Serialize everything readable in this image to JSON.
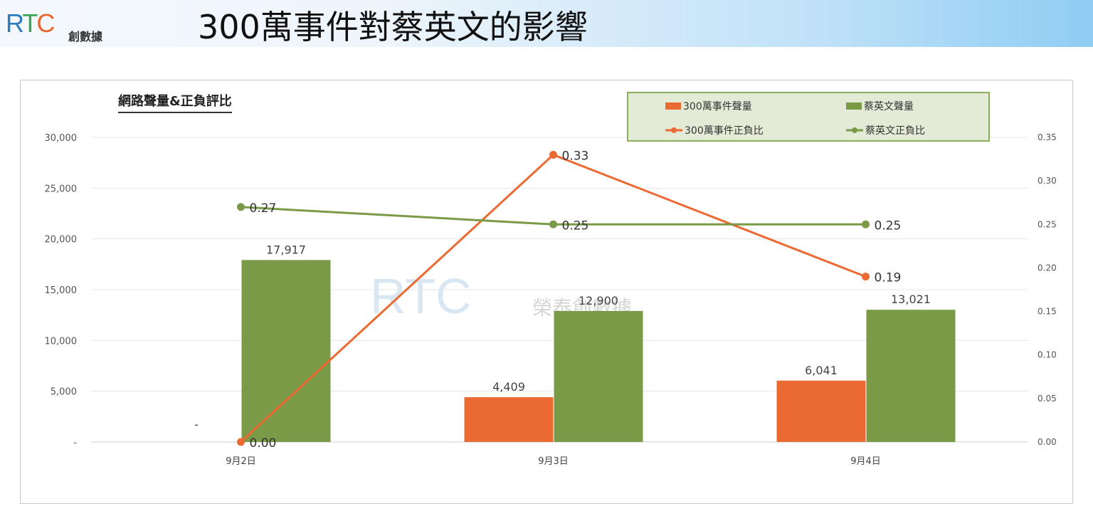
{
  "header": {
    "logo_text": "RTC",
    "logo_sub": "創數據",
    "title": "300萬事件對蔡英文的影響"
  },
  "watermark": {
    "text": "RTC",
    "sub": "榮泰創數據"
  },
  "colors": {
    "orange": "#eb6a32",
    "green": "#7a9a47"
  },
  "chart_data": {
    "type": "bar+line",
    "title": "網路聲量&正負評比",
    "categories": [
      "9月2日",
      "9月3日",
      "9月4日"
    ],
    "y_left": {
      "range": [
        0,
        30000
      ],
      "ticks": [
        "-",
        "5,000",
        "10,000",
        "15,000",
        "20,000",
        "25,000",
        "30,000"
      ],
      "tick_values": [
        0,
        5000,
        10000,
        15000,
        20000,
        25000,
        30000
      ]
    },
    "y_right": {
      "range": [
        0,
        0.35
      ],
      "ticks": [
        "0.00",
        "0.05",
        "0.10",
        "0.15",
        "0.20",
        "0.25",
        "0.30",
        "0.35"
      ],
      "tick_values": [
        0,
        0.05,
        0.1,
        0.15,
        0.2,
        0.25,
        0.3,
        0.35
      ]
    },
    "series": [
      {
        "name": "300萬事件聲量",
        "kind": "bar",
        "axis": "left",
        "color": "#eb6a32",
        "values": [
          0,
          4409,
          6041
        ],
        "labels": [
          "-",
          "4,409",
          "6,041"
        ]
      },
      {
        "name": "蔡英文聲量",
        "kind": "bar",
        "axis": "left",
        "color": "#7a9a47",
        "values": [
          17917,
          12900,
          13021
        ],
        "labels": [
          "17,917",
          "12,900",
          "13,021"
        ]
      },
      {
        "name": "300萬事件正負比",
        "kind": "line",
        "axis": "right",
        "color": "#eb6a32",
        "values": [
          0,
          0.33,
          0.19
        ],
        "labels": [
          "0.00",
          "0.33",
          "0.19"
        ]
      },
      {
        "name": "蔡英文正負比",
        "kind": "line",
        "axis": "right",
        "color": "#7a9a47",
        "values": [
          0.27,
          0.25,
          0.25
        ],
        "labels": [
          "0.27",
          "0.25",
          "0.25"
        ]
      }
    ],
    "grid": true,
    "legend_position": "top-right"
  }
}
